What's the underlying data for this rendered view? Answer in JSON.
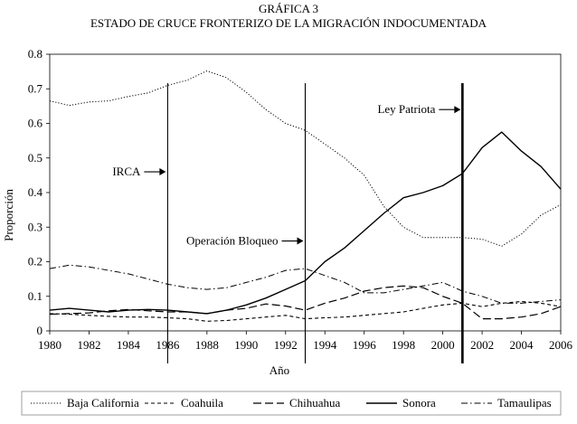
{
  "chart_data": {
    "type": "line",
    "title": "GRÁFICA 3",
    "subtitle": "ESTADO DE CRUCE FRONTERIZO DE LA MIGRACIÓN INDOCUMENTADA",
    "xlabel": "Año",
    "ylabel": "Proporción",
    "xlim": [
      1980,
      2006
    ],
    "ylim": [
      0,
      0.8
    ],
    "x_ticks": [
      "1980",
      "1982",
      "1984",
      "1986",
      "1988",
      "1990",
      "1992",
      "1994",
      "1996",
      "1998",
      "2000",
      "2002",
      "2004",
      "2006"
    ],
    "y_ticks": [
      "0",
      "0.1",
      "0.2",
      "0.3",
      "0.4",
      "0.5",
      "0.6",
      "0.7",
      "0.8"
    ],
    "x": [
      1980,
      1981,
      1982,
      1983,
      1984,
      1985,
      1986,
      1987,
      1988,
      1989,
      1990,
      1991,
      1992,
      1993,
      1994,
      1995,
      1996,
      1997,
      1998,
      1999,
      2000,
      2001,
      2002,
      2003,
      2004,
      2005,
      2006
    ],
    "series": [
      {
        "name": "Baja California",
        "style": "dotted",
        "values": [
          0.665,
          0.652,
          0.662,
          0.665,
          0.678,
          0.688,
          0.71,
          0.725,
          0.752,
          0.732,
          0.69,
          0.64,
          0.6,
          0.58,
          0.54,
          0.5,
          0.45,
          0.36,
          0.3,
          0.27,
          0.27,
          0.27,
          0.265,
          0.245,
          0.28,
          0.335,
          0.365
        ]
      },
      {
        "name": "Coahuila",
        "style": "short-dash",
        "values": [
          0.05,
          0.048,
          0.045,
          0.042,
          0.04,
          0.04,
          0.038,
          0.035,
          0.028,
          0.03,
          0.035,
          0.04,
          0.045,
          0.035,
          0.038,
          0.04,
          0.045,
          0.05,
          0.055,
          0.065,
          0.075,
          0.08,
          0.07,
          0.08,
          0.085,
          0.08,
          0.07
        ]
      },
      {
        "name": "Chihuahua",
        "style": "long-dash",
        "values": [
          0.048,
          0.05,
          0.052,
          0.058,
          0.062,
          0.058,
          0.055,
          0.055,
          0.05,
          0.06,
          0.065,
          0.078,
          0.072,
          0.06,
          0.08,
          0.095,
          0.115,
          0.125,
          0.13,
          0.125,
          0.1,
          0.08,
          0.035,
          0.035,
          0.04,
          0.05,
          0.07
        ]
      },
      {
        "name": "Sonora",
        "style": "solid",
        "values": [
          0.06,
          0.065,
          0.06,
          0.055,
          0.06,
          0.062,
          0.06,
          0.055,
          0.05,
          0.06,
          0.075,
          0.095,
          0.12,
          0.145,
          0.2,
          0.24,
          0.29,
          0.34,
          0.385,
          0.4,
          0.42,
          0.455,
          0.53,
          0.575,
          0.52,
          0.475,
          0.41
        ]
      },
      {
        "name": "Tamaulipas",
        "style": "dash-dot",
        "values": [
          0.18,
          0.19,
          0.185,
          0.175,
          0.165,
          0.15,
          0.135,
          0.125,
          0.12,
          0.125,
          0.14,
          0.155,
          0.175,
          0.18,
          0.16,
          0.14,
          0.11,
          0.11,
          0.12,
          0.13,
          0.14,
          0.115,
          0.1,
          0.08,
          0.08,
          0.085,
          0.09
        ]
      }
    ],
    "vertical_lines": [
      {
        "x": 1986,
        "label": "IRCA",
        "label_y": 0.46,
        "heavy": false
      },
      {
        "x": 1993,
        "label": "Operación Bloqueo",
        "label_y": 0.26,
        "heavy": false
      },
      {
        "x": 2001,
        "label": "Ley Patriota",
        "label_y": 0.64,
        "heavy": true
      }
    ],
    "legend": "bottom"
  }
}
